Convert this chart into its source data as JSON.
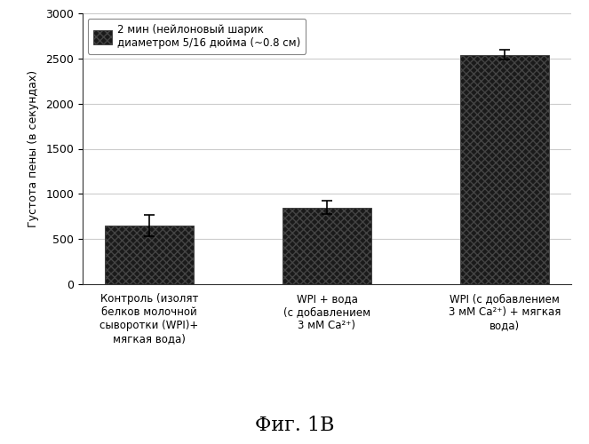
{
  "categories": [
    "Контроль (изолят\nбелков молочной\nсыворотки (WPI)+\nмягкая вода)",
    "WPI + вода\n(с добавлением\n3 мМ Ca²⁺)",
    "WPI (с добавлением\n3 мМ Ca²⁺) + мягкая\nвода)"
  ],
  "values": [
    650,
    850,
    2540
  ],
  "errors": [
    120,
    70,
    55
  ],
  "bar_color": "#1a1a1a",
  "ylim": [
    0,
    3000
  ],
  "yticks": [
    0,
    500,
    1000,
    1500,
    2000,
    2500,
    3000
  ],
  "ylabel": "Густота пены (в секундах)",
  "legend_label": "2 мин (нейлоновый шарик\nдиаметром 5/16 дюйма (~0.8 см)",
  "figure_label": "Фиг. 1В",
  "background_color": "#ffffff",
  "plot_bg_color": "#ffffff",
  "grid_color": "#cccccc",
  "axis_fontsize": 9,
  "tick_fontsize": 9,
  "label_fontsize": 8.5,
  "legend_fontsize": 8.5
}
